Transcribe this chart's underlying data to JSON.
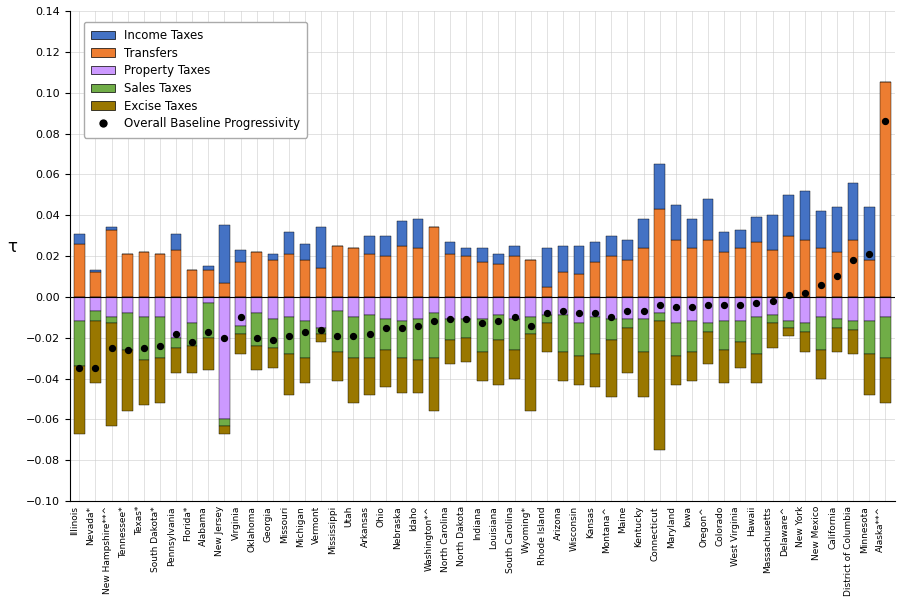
{
  "states": [
    "Illinois",
    "Nevada*",
    "New Hampshire**^",
    "Tennessee*",
    "Texas*",
    "South Dakota*",
    "Pennsylvania",
    "Florida*",
    "Alabama",
    "New Jersey",
    "Virginia",
    "Oklahoma",
    "Georgia",
    "Missouri",
    "Michigan",
    "Vermont",
    "Mississippi",
    "Utah",
    "Arkansas",
    "Ohio",
    "Nebraska",
    "Idaho",
    "Washington*^",
    "North Carolina",
    "North Dakota",
    "Indiana",
    "Louisiana",
    "South Carolina",
    "Wyoming*",
    "Rhode Island",
    "Arizona",
    "Wisconsin",
    "Kansas",
    "Montana^",
    "Maine",
    "Kentucky",
    "Connecticut",
    "Maryland",
    "Iowa",
    "Oregon^",
    "Colorado",
    "West Virginia",
    "Hawaii",
    "Massachusetts",
    "Delaware^",
    "New York",
    "New Mexico",
    "California",
    "District of Columbia",
    "Minnesota",
    "Alaska**^"
  ],
  "income": [
    0.005,
    0.001,
    0.001,
    0.0,
    0.0,
    0.0,
    0.008,
    0.0,
    0.002,
    0.028,
    0.006,
    0.0,
    0.003,
    0.011,
    0.008,
    0.02,
    0.0,
    0.0,
    0.009,
    0.01,
    0.012,
    0.014,
    0.0,
    0.006,
    0.004,
    0.007,
    0.005,
    0.005,
    0.0,
    0.019,
    0.013,
    0.014,
    0.01,
    0.01,
    0.01,
    0.014,
    0.022,
    0.017,
    0.014,
    0.02,
    0.01,
    0.009,
    0.012,
    0.017,
    0.02,
    0.024,
    0.018,
    0.022,
    0.028,
    0.026,
    0.0
  ],
  "transfers": [
    0.026,
    0.012,
    0.033,
    0.021,
    0.022,
    0.021,
    0.023,
    0.013,
    0.013,
    0.007,
    0.017,
    0.022,
    0.018,
    0.021,
    0.018,
    0.014,
    0.025,
    0.024,
    0.021,
    0.02,
    0.025,
    0.024,
    0.034,
    0.021,
    0.02,
    0.017,
    0.016,
    0.02,
    0.018,
    0.005,
    0.012,
    0.011,
    0.017,
    0.02,
    0.018,
    0.024,
    0.043,
    0.028,
    0.024,
    0.028,
    0.022,
    0.024,
    0.027,
    0.023,
    0.03,
    0.028,
    0.024,
    0.022,
    0.028,
    0.018,
    0.105
  ],
  "property": [
    -0.012,
    -0.007,
    -0.01,
    -0.008,
    -0.01,
    -0.01,
    -0.02,
    -0.013,
    -0.003,
    -0.06,
    -0.014,
    -0.008,
    -0.011,
    -0.01,
    -0.012,
    -0.015,
    -0.007,
    -0.01,
    -0.009,
    -0.011,
    -0.012,
    -0.011,
    -0.008,
    -0.011,
    -0.011,
    -0.011,
    -0.009,
    -0.011,
    -0.01,
    -0.009,
    -0.009,
    -0.013,
    -0.01,
    -0.011,
    -0.011,
    -0.011,
    -0.008,
    -0.013,
    -0.012,
    -0.013,
    -0.012,
    -0.012,
    -0.01,
    -0.009,
    -0.012,
    -0.013,
    -0.01,
    -0.011,
    -0.012,
    -0.012,
    -0.01
  ],
  "sales": [
    -0.022,
    -0.005,
    -0.003,
    -0.018,
    -0.021,
    -0.02,
    -0.005,
    -0.011,
    -0.017,
    -0.003,
    -0.004,
    -0.016,
    -0.014,
    -0.018,
    -0.018,
    -0.003,
    -0.02,
    -0.02,
    -0.021,
    -0.015,
    -0.018,
    -0.02,
    -0.022,
    -0.01,
    -0.009,
    -0.016,
    -0.012,
    -0.015,
    -0.008,
    -0.004,
    -0.018,
    -0.016,
    -0.018,
    -0.01,
    -0.004,
    -0.016,
    -0.004,
    -0.016,
    -0.015,
    -0.004,
    -0.014,
    -0.01,
    -0.018,
    -0.004,
    -0.003,
    -0.004,
    -0.016,
    -0.004,
    -0.004,
    -0.016,
    -0.02
  ],
  "excise": [
    -0.033,
    -0.03,
    -0.05,
    -0.03,
    -0.022,
    -0.022,
    -0.012,
    -0.013,
    -0.016,
    -0.004,
    -0.01,
    -0.012,
    -0.01,
    -0.02,
    -0.012,
    -0.004,
    -0.014,
    -0.022,
    -0.018,
    -0.018,
    -0.017,
    -0.016,
    -0.026,
    -0.012,
    -0.012,
    -0.014,
    -0.022,
    -0.014,
    -0.038,
    -0.014,
    -0.014,
    -0.014,
    -0.016,
    -0.028,
    -0.022,
    -0.022,
    -0.063,
    -0.014,
    -0.014,
    -0.016,
    -0.016,
    -0.013,
    -0.014,
    -0.012,
    -0.004,
    -0.01,
    -0.014,
    -0.012,
    -0.012,
    -0.02,
    -0.022
  ],
  "overall": [
    -0.035,
    -0.035,
    -0.025,
    -0.026,
    -0.025,
    -0.024,
    -0.018,
    -0.022,
    -0.017,
    -0.02,
    -0.01,
    -0.02,
    -0.021,
    -0.019,
    -0.017,
    -0.016,
    -0.019,
    -0.019,
    -0.018,
    -0.015,
    -0.015,
    -0.014,
    -0.012,
    -0.011,
    -0.011,
    -0.013,
    -0.012,
    -0.01,
    -0.014,
    -0.008,
    -0.007,
    -0.008,
    -0.008,
    -0.01,
    -0.007,
    -0.007,
    -0.004,
    -0.005,
    -0.005,
    -0.004,
    -0.004,
    -0.004,
    -0.003,
    -0.002,
    0.001,
    0.002,
    0.006,
    0.01,
    0.018,
    0.021,
    0.086
  ],
  "colors": {
    "income": "#4472C4",
    "transfers": "#ED7D31",
    "property": "#CC99FF",
    "sales": "#70AD47",
    "excise": "#997700",
    "overall": "#000000"
  },
  "ylim": [
    -0.1,
    0.14
  ],
  "ylabel": "τ"
}
